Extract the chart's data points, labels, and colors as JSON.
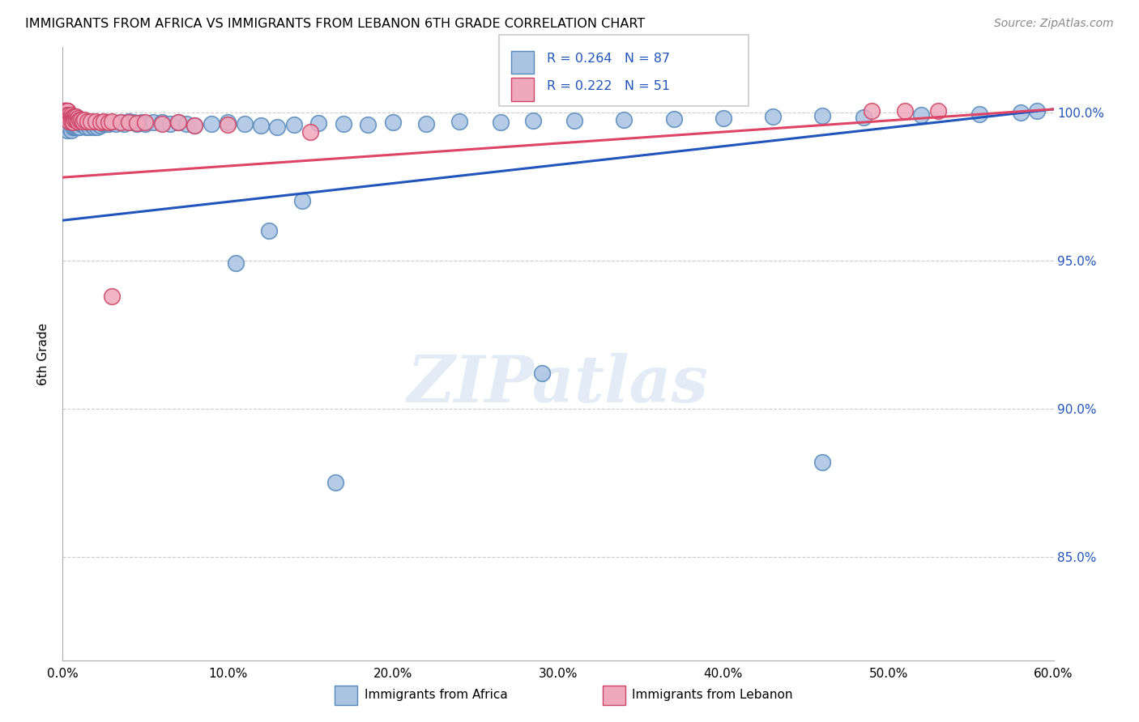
{
  "title": "IMMIGRANTS FROM AFRICA VS IMMIGRANTS FROM LEBANON 6TH GRADE CORRELATION CHART",
  "source": "Source: ZipAtlas.com",
  "ylabel": "6th Grade",
  "x_min": 0.0,
  "x_max": 0.6,
  "y_min": 0.815,
  "y_max": 1.022,
  "y_tick_vals": [
    0.85,
    0.9,
    0.95,
    1.0
  ],
  "y_tick_labels": [
    "85.0%",
    "90.0%",
    "95.0%",
    "100.0%"
  ],
  "x_tick_vals": [
    0.0,
    0.1,
    0.2,
    0.3,
    0.4,
    0.5,
    0.6
  ],
  "x_tick_labels": [
    "0.0%",
    "10.0%",
    "20.0%",
    "30.0%",
    "40.0%",
    "50.0%",
    "60.0%"
  ],
  "africa_color": "#aac4e2",
  "africa_edge": "#5588bb",
  "lebanon_color": "#f0a8bc",
  "lebanon_edge": "#cc4466",
  "line_africa_color": "#2255bb",
  "line_lebanon_color": "#dd4466",
  "africa_line_x0": 0.0,
  "africa_line_y0": 0.9635,
  "africa_line_x1": 0.6,
  "africa_line_y1": 1.001,
  "lebanon_line_x0": 0.0,
  "lebanon_line_y0": 0.978,
  "lebanon_line_x1": 0.6,
  "lebanon_line_y1": 1.001,
  "R_africa": 0.264,
  "N_africa": 87,
  "R_lebanon": 0.222,
  "N_lebanon": 51,
  "legend_africa": "Immigrants from Africa",
  "legend_lebanon": "Immigrants from Lebanon",
  "watermark": "ZIPatlas",
  "africa_x": [
    0.001,
    0.001,
    0.002,
    0.002,
    0.002,
    0.003,
    0.003,
    0.003,
    0.004,
    0.004,
    0.005,
    0.005,
    0.005,
    0.006,
    0.006,
    0.007,
    0.007,
    0.008,
    0.008,
    0.009,
    0.009,
    0.01,
    0.01,
    0.011,
    0.012,
    0.013,
    0.014,
    0.015,
    0.016,
    0.017,
    0.018,
    0.019,
    0.02,
    0.021,
    0.022,
    0.023,
    0.024,
    0.025,
    0.026,
    0.027,
    0.028,
    0.03,
    0.032,
    0.035,
    0.037,
    0.04,
    0.043,
    0.045,
    0.048,
    0.05,
    0.055,
    0.06,
    0.065,
    0.07,
    0.075,
    0.08,
    0.09,
    0.1,
    0.11,
    0.12,
    0.13,
    0.14,
    0.155,
    0.17,
    0.185,
    0.2,
    0.22,
    0.24,
    0.265,
    0.285,
    0.31,
    0.34,
    0.37,
    0.4,
    0.43,
    0.46,
    0.485,
    0.52,
    0.555,
    0.58,
    0.105,
    0.125,
    0.145,
    0.165,
    0.29,
    0.46,
    0.59
  ],
  "africa_y": [
    0.998,
    0.996,
    0.999,
    0.997,
    0.995,
    0.998,
    0.996,
    0.994,
    0.997,
    0.995,
    0.998,
    0.996,
    0.994,
    0.997,
    0.995,
    0.997,
    0.995,
    0.997,
    0.995,
    0.996,
    0.995,
    0.997,
    0.995,
    0.996,
    0.996,
    0.996,
    0.995,
    0.996,
    0.995,
    0.996,
    0.996,
    0.995,
    0.996,
    0.995,
    0.996,
    0.9955,
    0.9965,
    0.996,
    0.9965,
    0.996,
    0.996,
    0.9965,
    0.996,
    0.9965,
    0.996,
    0.997,
    0.9965,
    0.996,
    0.9965,
    0.996,
    0.9965,
    0.9965,
    0.996,
    0.9965,
    0.996,
    0.9955,
    0.996,
    0.9965,
    0.996,
    0.9955,
    0.995,
    0.9958,
    0.9962,
    0.996,
    0.9958,
    0.9965,
    0.996,
    0.9968,
    0.9965,
    0.9972,
    0.9972,
    0.9975,
    0.9978,
    0.998,
    0.9985,
    0.9988,
    0.9982,
    0.999,
    0.9992,
    0.9998,
    0.949,
    0.96,
    0.97,
    0.875,
    0.912,
    0.882,
    1.0005
  ],
  "lebanon_x": [
    0.001,
    0.001,
    0.001,
    0.002,
    0.002,
    0.002,
    0.002,
    0.003,
    0.003,
    0.003,
    0.003,
    0.003,
    0.004,
    0.004,
    0.004,
    0.005,
    0.005,
    0.005,
    0.006,
    0.006,
    0.006,
    0.007,
    0.007,
    0.008,
    0.008,
    0.009,
    0.009,
    0.01,
    0.011,
    0.012,
    0.013,
    0.015,
    0.017,
    0.02,
    0.023,
    0.025,
    0.028,
    0.03,
    0.035,
    0.04,
    0.045,
    0.05,
    0.06,
    0.07,
    0.08,
    0.1,
    0.15,
    0.49,
    0.51,
    0.53,
    0.03
  ],
  "lebanon_y": [
    1.0005,
    1.0005,
    1.0005,
    1.0005,
    1.0005,
    1.0005,
    1.0005,
    1.0005,
    1.0005,
    1.0005,
    1.0005,
    0.999,
    0.999,
    0.998,
    0.997,
    0.999,
    0.998,
    0.997,
    0.9985,
    0.9975,
    0.9965,
    0.9985,
    0.9975,
    0.9985,
    0.9975,
    0.998,
    0.997,
    0.9975,
    0.9975,
    0.997,
    0.9975,
    0.997,
    0.997,
    0.997,
    0.9965,
    0.9968,
    0.9965,
    0.9968,
    0.9965,
    0.9965,
    0.9962,
    0.9965,
    0.996,
    0.9965,
    0.9955,
    0.9958,
    0.9932,
    1.0005,
    1.0005,
    1.0005,
    0.938
  ]
}
